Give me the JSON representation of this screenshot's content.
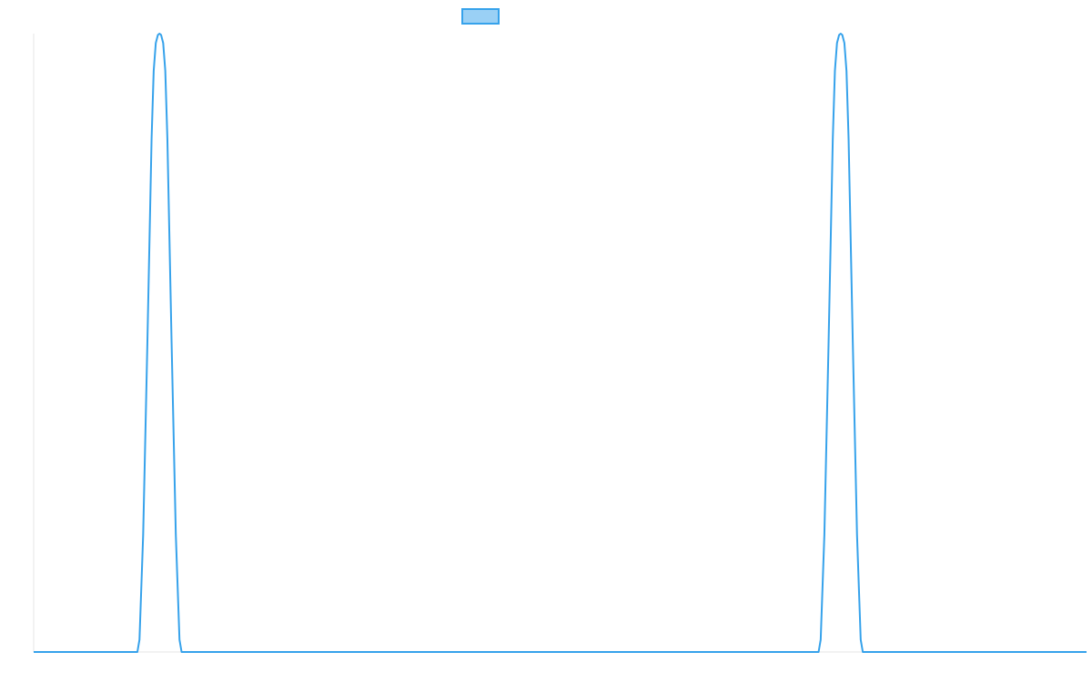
{
  "chart_data": {
    "type": "line",
    "title": "",
    "xlabel": "",
    "ylabel": "",
    "grid": false,
    "legend": {
      "position": "top-center",
      "entries": [
        {
          "name": "",
          "color": "#36a2eb",
          "fill": "#9ad0f5"
        }
      ]
    },
    "xlim": [
      0,
      1
    ],
    "ylim": [
      0,
      1
    ],
    "series": [
      {
        "name": "",
        "color": "#36a2eb",
        "x": [
          0,
          0.0985,
          0.1005,
          0.104,
          0.108,
          0.112,
          0.114,
          0.116,
          0.118,
          0.1195,
          0.121,
          0.123,
          0.125,
          0.127,
          0.131,
          0.135,
          0.1385,
          0.1405,
          0.7455,
          0.7475,
          0.751,
          0.755,
          0.759,
          0.761,
          0.763,
          0.765,
          0.7665,
          0.768,
          0.77,
          0.772,
          0.774,
          0.778,
          0.782,
          0.7855,
          0.7875,
          1
        ],
        "values": [
          0,
          0,
          0.02,
          0.19,
          0.5,
          0.83,
          0.94,
          0.985,
          0.998,
          1.0,
          0.998,
          0.985,
          0.94,
          0.83,
          0.5,
          0.19,
          0.02,
          0,
          0,
          0.02,
          0.19,
          0.5,
          0.83,
          0.94,
          0.985,
          0.998,
          1.0,
          0.998,
          0.985,
          0.94,
          0.83,
          0.5,
          0.19,
          0.02,
          0,
          0
        ]
      }
    ]
  }
}
